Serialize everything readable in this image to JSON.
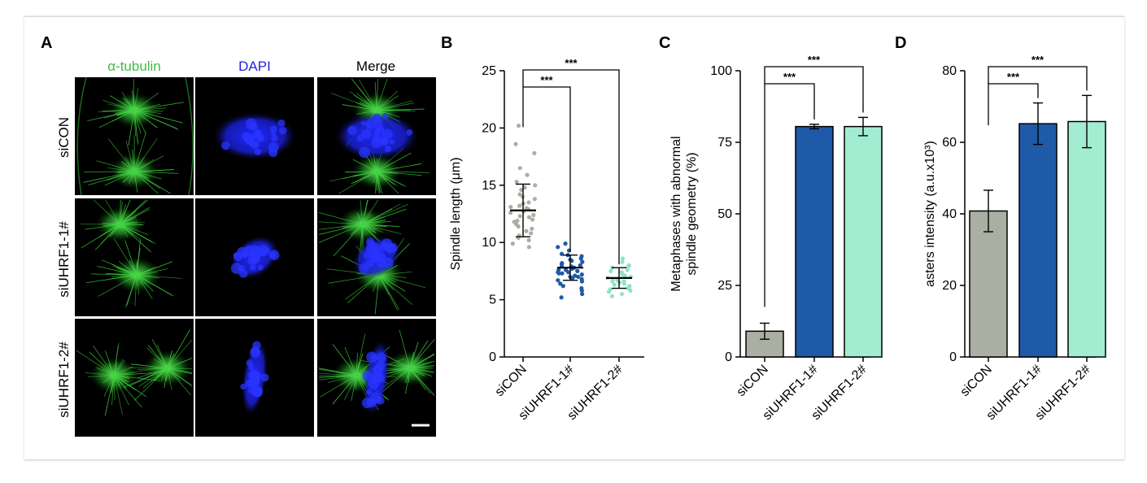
{
  "panel_a": {
    "letter": "A",
    "columns": [
      "α-tubulin",
      "DAPI",
      "Merge"
    ],
    "column_colors": [
      "#3fbf3f",
      "#2222e0",
      "#000000"
    ],
    "rows": [
      "siCON",
      "siUHRF1-1#",
      "siUHRF1-2#"
    ]
  },
  "chart_data": [
    {
      "panel": "B",
      "type": "scatter",
      "ylabel": "Spindle length (μm)",
      "categories": [
        "siCON",
        "siUHRF1-1#",
        "siUHRF1-2#"
      ],
      "ylim": [
        0,
        25
      ],
      "yticks": [
        0,
        5,
        10,
        15,
        20,
        25
      ],
      "colors": [
        "#a9b0a3",
        "#1f5aa8",
        "#8fe3c6"
      ],
      "mean": [
        12.8,
        7.8,
        6.9
      ],
      "err": [
        2.3,
        1.1,
        0.9
      ],
      "points": [
        [
          20.2,
          18.6,
          17.8,
          16.5,
          15.9,
          15.3,
          15.0,
          14.6,
          14.2,
          14.0,
          13.8,
          13.5,
          13.2,
          13.0,
          12.9,
          12.6,
          12.4,
          12.2,
          12.0,
          11.8,
          11.6,
          11.4,
          11.2,
          11.0,
          10.8,
          10.6,
          10.4,
          10.2,
          9.9,
          9.6,
          13.4,
          12.7,
          11.9,
          14.8,
          13.1,
          12.3
        ],
        [
          9.9,
          9.6,
          9.3,
          9.0,
          8.8,
          8.6,
          8.4,
          8.2,
          8.1,
          8.0,
          7.9,
          7.8,
          7.7,
          7.6,
          7.5,
          7.4,
          7.3,
          7.2,
          7.1,
          7.0,
          6.9,
          6.8,
          6.6,
          6.4,
          6.2,
          6.0,
          5.8,
          5.5,
          5.2,
          8.5,
          7.9,
          7.6,
          7.3,
          8.9,
          6.7,
          7.4,
          8.3,
          7.0
        ],
        [
          8.6,
          8.3,
          8.0,
          7.8,
          7.6,
          7.4,
          7.2,
          7.0,
          6.9,
          6.8,
          6.7,
          6.6,
          6.5,
          6.4,
          6.2,
          6.0,
          5.9,
          5.7,
          5.5,
          5.3,
          7.1,
          6.8,
          6.3,
          7.5,
          6.6,
          7.9,
          6.1,
          5.8
        ]
      ],
      "significance": [
        "***",
        "***"
      ]
    },
    {
      "panel": "C",
      "type": "bar",
      "ylabel": "Metaphases with abnormal spindle geometry (%)",
      "ylabel_lines": [
        "Metaphases with abnormal",
        "spindle geometry (%)"
      ],
      "categories": [
        "siCON",
        "siUHRF1-1#",
        "siUHRF1-2#"
      ],
      "values": [
        9,
        80.5,
        80.5
      ],
      "err": [
        2.8,
        0.8,
        3.2
      ],
      "ylim": [
        0,
        100
      ],
      "yticks": [
        0,
        25,
        50,
        75,
        100
      ],
      "colors": [
        "#a9b0a3",
        "#1f5aa8",
        "#a2ecd2"
      ],
      "significance": [
        "***",
        "***"
      ]
    },
    {
      "panel": "D",
      "type": "bar",
      "ylabel": "asters intensity (a.u.x10³)",
      "categories": [
        "siCON",
        "siUHRF1-1#",
        "siUHRF1-2#"
      ],
      "values": [
        40.8,
        65.2,
        65.8
      ],
      "err": [
        5.8,
        5.8,
        7.3
      ],
      "ylim": [
        0,
        80
      ],
      "yticks": [
        0,
        20,
        40,
        60,
        80
      ],
      "colors": [
        "#a9b0a3",
        "#1f5aa8",
        "#a2ecd2"
      ],
      "significance": [
        "***",
        "***"
      ]
    }
  ]
}
